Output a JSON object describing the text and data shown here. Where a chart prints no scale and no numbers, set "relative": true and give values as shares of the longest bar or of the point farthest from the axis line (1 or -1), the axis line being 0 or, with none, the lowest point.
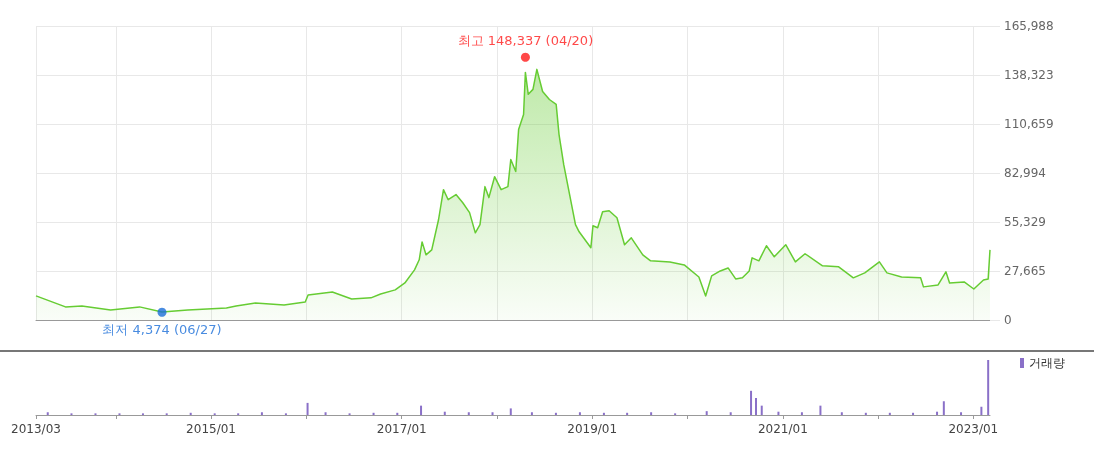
{
  "chart_data": [
    {
      "type": "area",
      "series": [
        {
          "color": "#66cc33",
          "marker": "none",
          "x": [
            "2013-03-01",
            "2013-06-22",
            "2013-08-24",
            "2013-12-12",
            "2014-04-02",
            "2014-06-27",
            "2014-10-04",
            "2015-03-01",
            "2015-04-07",
            "2015-06-20",
            "2015-10-08",
            "2015-12-28",
            "2016-01-08",
            "2016-04-10",
            "2016-06-23",
            "2016-09-05",
            "2016-10-12",
            "2016-12-07",
            "2017-01-13",
            "2017-02-19",
            "2017-03-09",
            "2017-03-20",
            "2017-04-04",
            "2017-04-26",
            "2017-05-22",
            "2017-06-10",
            "2017-06-28",
            "2017-07-28",
            "2017-08-23",
            "2017-09-18",
            "2017-10-10",
            "2017-10-28",
            "2017-11-16",
            "2017-12-01",
            "2017-12-23",
            "2018-01-17",
            "2018-02-12",
            "2018-02-23",
            "2018-03-14",
            "2018-03-25",
            "2018-04-13",
            "2018-04-20",
            "2018-05-01",
            "2018-05-19",
            "2018-06-03",
            "2018-06-25",
            "2018-07-21",
            "2018-08-16",
            "2018-08-27",
            "2018-09-14",
            "2018-10-14",
            "2018-10-29",
            "2018-11-12",
            "2018-12-27",
            "2019-01-04",
            "2019-01-22",
            "2019-02-10",
            "2019-03-07",
            "2019-04-06",
            "2019-05-05",
            "2019-05-31",
            "2019-07-14",
            "2019-08-13",
            "2019-10-26",
            "2019-12-20",
            "2020-02-14",
            "2020-03-11",
            "2020-04-03",
            "2020-05-06",
            "2020-06-05",
            "2020-07-04",
            "2020-07-30",
            "2020-08-25",
            "2020-09-05",
            "2020-10-01",
            "2020-10-30",
            "2020-11-29",
            "2021-01-12",
            "2021-02-18",
            "2021-03-27",
            "2021-06-02",
            "2021-08-03",
            "2021-09-28",
            "2021-11-11",
            "2022-01-06",
            "2022-02-04",
            "2022-04-01",
            "2022-06-13",
            "2022-06-24",
            "2022-08-19",
            "2022-09-18",
            "2022-10-02",
            "2022-11-27",
            "2023-01-03",
            "2023-02-09",
            "2023-02-27",
            "2023-03-06"
          ],
          "values": [
            13600,
            7400,
            7900,
            5700,
            7400,
            4500,
            5700,
            6800,
            7900,
            9600,
            8500,
            10200,
            14100,
            15800,
            11900,
            12500,
            14700,
            17000,
            20900,
            28300,
            34000,
            44100,
            36800,
            39600,
            56600,
            73600,
            67900,
            70800,
            66200,
            60600,
            49200,
            53800,
            75300,
            69100,
            80900,
            73600,
            75300,
            90600,
            83800,
            107500,
            116000,
            139800,
            127400,
            130200,
            141500,
            129000,
            124500,
            121700,
            104700,
            87700,
            65100,
            53800,
            49800,
            40800,
            53200,
            52100,
            61100,
            61700,
            57700,
            42500,
            46400,
            36800,
            33400,
            32800,
            31100,
            24300,
            13600,
            24900,
            27700,
            29400,
            23200,
            23800,
            27700,
            35100,
            33400,
            41900,
            35700,
            42500,
            32800,
            37400,
            30600,
            30000,
            23800,
            26600,
            32800,
            26600,
            24300,
            23800,
            18700,
            19800,
            27200,
            20900,
            21500,
            17500,
            22600,
            23200,
            39600
          ]
        },
        {
          "type": "scatter",
          "marker": "circle",
          "x": [
            "2018-04-20",
            "2014-06-27"
          ],
          "values": [
            148337,
            4374
          ],
          "colors": [
            "#ff1a1a",
            "#1a6ed8"
          ],
          "value_labels": [
            "최고 148,337 (04/20)",
            "최저 4,374 (06/27)"
          ]
        }
      ],
      "xlim": [
        "2013-03-01",
        "2023-03-06"
      ],
      "xticks": [
        {
          "value": "2013-03",
          "label": null
        },
        {
          "value": "2014-01",
          "label": null
        },
        {
          "value": "2015-01",
          "label": null
        },
        {
          "value": "2016-01",
          "label": null
        },
        {
          "value": "2017-01",
          "label": null
        },
        {
          "value": "2018-01",
          "label": null
        },
        {
          "value": "2019-01",
          "label": null
        },
        {
          "value": "2020-01",
          "label": null
        },
        {
          "value": "2021-01",
          "label": null
        },
        {
          "value": "2022-01",
          "label": null
        },
        {
          "value": "2023-01",
          "label": null
        }
      ],
      "ylim": [
        0,
        165988
      ],
      "yticks": [
        0,
        {
          "value": 27665,
          "label": "27,665"
        },
        {
          "value": 55329,
          "label": "55,329"
        },
        {
          "value": 82994,
          "label": "82,994"
        },
        {
          "value": 110659,
          "label": "110,659"
        },
        {
          "value": 138323,
          "label": "138,323"
        },
        {
          "value": 165988,
          "label": "165,988"
        }
      ],
      "tick_labels": "y",
      "grid": true
    },
    {
      "type": "bar",
      "relative": true,
      "x": [
        "2013-04-15",
        "2013-07-15",
        "2013-10-15",
        "2014-01-15",
        "2014-04-15",
        "2014-07-15",
        "2014-10-15",
        "2015-01-15",
        "2015-04-15",
        "2015-07-15",
        "2015-10-15",
        "2016-01-06",
        "2016-03-15",
        "2016-06-15",
        "2016-09-15",
        "2016-12-15",
        "2017-03-16",
        "2017-06-15",
        "2017-09-15",
        "2017-12-15",
        "2018-02-23",
        "2018-05-15",
        "2018-08-15",
        "2018-11-15",
        "2019-02-15",
        "2019-05-15",
        "2019-08-15",
        "2019-11-15",
        "2020-03-15",
        "2020-06-15",
        "2020-09-01",
        "2020-09-20",
        "2020-10-12",
        "2020-12-15",
        "2021-03-15",
        "2021-05-25",
        "2021-08-15",
        "2021-11-15",
        "2022-02-15",
        "2022-05-15",
        "2022-08-15",
        "2022-09-10",
        "2022-11-15",
        "2023-02-01",
        "2023-02-27"
      ],
      "series": [
        {
          "name": "거래량",
          "color": "#8a70c8",
          "values": [
            0.05,
            0.03,
            0.03,
            0.03,
            0.03,
            0.03,
            0.04,
            0.03,
            0.03,
            0.05,
            0.03,
            0.22,
            0.05,
            0.03,
            0.04,
            0.04,
            0.17,
            0.06,
            0.05,
            0.05,
            0.12,
            0.05,
            0.04,
            0.05,
            0.04,
            0.04,
            0.05,
            0.03,
            0.07,
            0.05,
            0.44,
            0.31,
            0.17,
            0.06,
            0.05,
            0.17,
            0.05,
            0.04,
            0.04,
            0.04,
            0.06,
            0.25,
            0.05,
            0.15,
            1
          ]
        }
      ],
      "xlim": [
        "2013-03-01",
        "2023-03-06"
      ],
      "xticks": [
        {
          "value": "2013-03",
          "label": "2013/03"
        },
        {
          "value": "2014-01",
          "label": null
        },
        {
          "value": "2015-01",
          "label": "2015/01"
        },
        {
          "value": "2016-01",
          "label": null
        },
        {
          "value": "2017-01",
          "label": "2017/01"
        },
        {
          "value": "2018-01",
          "label": null
        },
        {
          "value": "2019-01",
          "label": "2019/01"
        },
        {
          "value": "2020-01",
          "label": null
        },
        {
          "value": "2021-01",
          "label": "2021/01"
        },
        {
          "value": "2022-01",
          "label": null
        },
        {
          "value": "2023-01",
          "label": "2023/01"
        }
      ],
      "tick_labels": "x",
      "legend": "top right"
    }
  ]
}
